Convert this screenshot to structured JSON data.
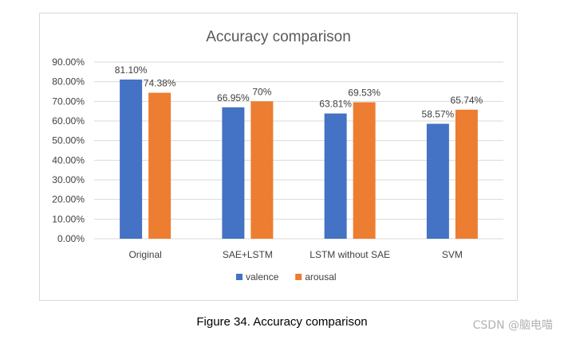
{
  "chart_data": {
    "type": "bar",
    "title": "Accuracy comparison",
    "categories": [
      "Original",
      "SAE+LSTM",
      "LSTM without SAE",
      "SVM"
    ],
    "series": [
      {
        "name": "valence",
        "color": "#4472C4",
        "values": [
          81.1,
          66.95,
          63.81,
          58.57
        ],
        "labels": [
          "81.10%",
          "66.95%",
          "63.81%",
          "58.57%"
        ]
      },
      {
        "name": "arousal",
        "color": "#ED7D31",
        "values": [
          74.38,
          70.0,
          69.53,
          65.74
        ],
        "labels": [
          "74.38%",
          "70%",
          "69.53%",
          "65.74%"
        ]
      }
    ],
    "yticks": [
      0,
      10,
      20,
      30,
      40,
      50,
      60,
      70,
      80,
      90
    ],
    "ytick_labels": [
      "0.00%",
      "10.00%",
      "20.00%",
      "30.00%",
      "40.00%",
      "50.00%",
      "60.00%",
      "70.00%",
      "80.00%",
      "90.00%"
    ],
    "ylim": [
      0,
      90
    ],
    "xlabel": "",
    "ylabel": "",
    "grid": true,
    "legend": "bottom",
    "gridline_color": "#d9d9d9",
    "text_color": "#404040",
    "title_color": "#595959"
  },
  "figure": {
    "caption": "Figure 34. Accuracy comparison"
  },
  "watermark": {
    "text": "CSDN @脑电喵"
  }
}
